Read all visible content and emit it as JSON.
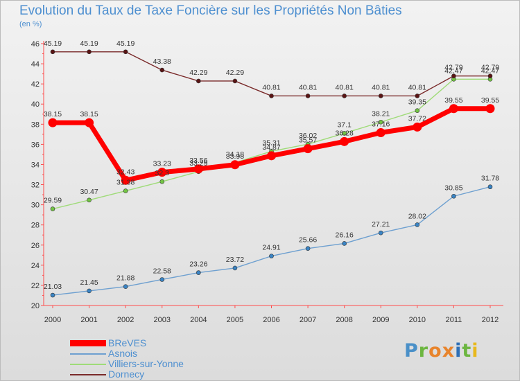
{
  "title": "Evolution du Taux de Taxe Foncière sur les Propriétés Non Bâties",
  "y_unit": "(en %)",
  "logo": {
    "text": "Proxiti",
    "letter_colors": [
      "#4a90c8",
      "#6cb640",
      "#e8842c",
      "#e8842c",
      "#2e6fb6",
      "#6cb640",
      "#e8b81c"
    ]
  },
  "chart_data": {
    "type": "line",
    "title": "Evolution du Taux de Taxe Foncière sur les Propriétés Non Bâties",
    "ylabel": "(en %)",
    "xlabel": "",
    "x": [
      "2000",
      "2001",
      "2002",
      "2003",
      "2004",
      "2005",
      "2006",
      "2007",
      "2008",
      "2009",
      "2010",
      "2011",
      "2012"
    ],
    "ylim": [
      20,
      46
    ],
    "yticks": [
      20,
      22,
      24,
      26,
      28,
      30,
      32,
      34,
      36,
      38,
      40,
      42,
      44,
      46
    ],
    "grid": false,
    "legend_position": "bottom-left",
    "series": [
      {
        "name": "BReVES",
        "color": "#ff0000",
        "marker_color": "#ff0000",
        "emphasis": true,
        "values": [
          38.15,
          38.15,
          32.43,
          33.23,
          33.56,
          33.98,
          34.87,
          35.57,
          36.28,
          37.16,
          37.72,
          39.55,
          39.55
        ]
      },
      {
        "name": "Asnois",
        "color": "#6ea0d0",
        "marker_color": "#3a84c4",
        "values": [
          21.03,
          21.45,
          21.88,
          22.58,
          23.26,
          23.72,
          24.91,
          25.66,
          26.16,
          27.21,
          28.02,
          30.85,
          31.78
        ]
      },
      {
        "name": "Villiers-sur-Yonne",
        "color": "#9fdb78",
        "marker_color": "#72c344",
        "values": [
          29.59,
          30.47,
          31.38,
          32.3,
          33.29,
          34.18,
          35.31,
          36.02,
          37.1,
          38.21,
          39.35,
          42.47,
          42.47
        ]
      },
      {
        "name": "Dornecy",
        "color": "#7a2a2a",
        "marker_color": "#5a1414",
        "values": [
          45.19,
          45.19,
          45.19,
          43.38,
          42.29,
          42.29,
          40.81,
          40.81,
          40.81,
          40.81,
          40.81,
          42.79,
          42.79
        ]
      }
    ]
  }
}
